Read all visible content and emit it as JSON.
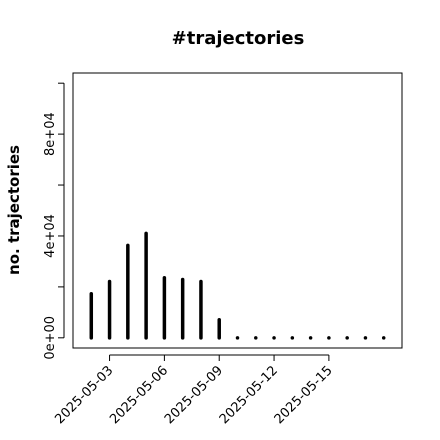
{
  "chart_data": {
    "type": "spike",
    "title": "#trajectories",
    "y_label": "no. trajectories",
    "x": [
      "2025-05-02",
      "2025-05-03",
      "2025-05-04",
      "2025-05-05",
      "2025-05-06",
      "2025-05-07",
      "2025-05-08",
      "2025-05-09",
      "2025-05-10",
      "2025-05-11",
      "2025-05-12",
      "2025-05-13",
      "2025-05-14",
      "2025-05-15",
      "2025-05-16",
      "2025-05-17",
      "2025-05-18"
    ],
    "values": [
      17300,
      22100,
      36300,
      41000,
      23600,
      22900,
      22100,
      7100,
      0,
      0,
      0,
      0,
      0,
      0,
      0,
      0,
      0
    ],
    "color": "#000000",
    "xlim": [
      "2025-05-01",
      "2025-05-19"
    ],
    "xticks": [
      "2025-05-03",
      "2025-05-06",
      "2025-05-09",
      "2025-05-12",
      "2025-05-15"
    ],
    "ylim": [
      -4000,
      104000
    ],
    "yticks": [
      {
        "value": 0,
        "label": "0e+00"
      },
      {
        "value": 40000,
        "label": "4e+04"
      },
      {
        "value": 80000,
        "label": "8e+04"
      }
    ],
    "yminor_ticks": [
      20000,
      60000,
      100000
    ]
  }
}
